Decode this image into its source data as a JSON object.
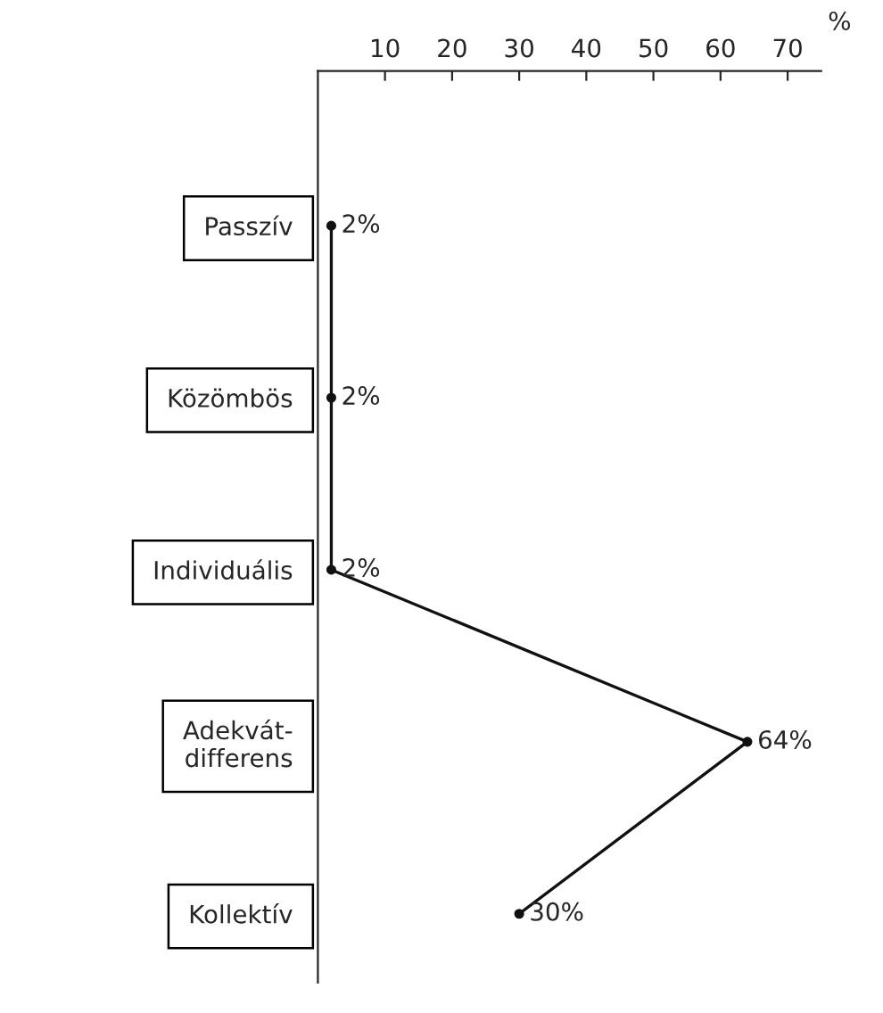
{
  "chart_data": {
    "type": "line",
    "orientation": "horizontal",
    "categories": [
      "Passzív",
      "Közömbös",
      "Individuális",
      "Adekvát-\ndifferens",
      "Kollektív"
    ],
    "values": [
      2,
      2,
      2,
      64,
      30
    ],
    "value_labels": [
      "2%",
      "2%",
      "2%",
      "64%",
      "30%"
    ],
    "color": "#111111",
    "marker": "circle",
    "line_style": "solid",
    "xlabel": "%",
    "xlim": [
      0,
      75
    ],
    "xticks": [
      10,
      20,
      30,
      40,
      50,
      60,
      70
    ],
    "grid": false,
    "legend": false
  }
}
